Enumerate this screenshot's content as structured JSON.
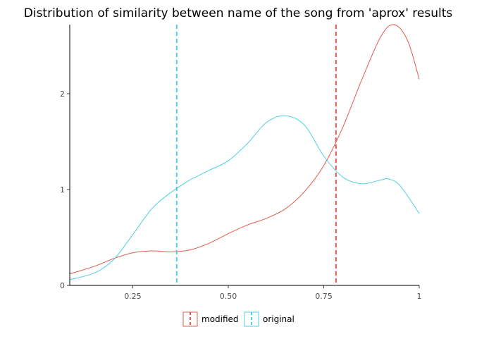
{
  "chart_data": {
    "type": "density",
    "title": "Distribution of similarity between name of the song from 'aprox' results",
    "xlabel": "",
    "ylabel": "",
    "xlim": [
      0.085,
      1.0
    ],
    "ylim": [
      0,
      2.72
    ],
    "x_ticks": [
      {
        "value": 0.25,
        "label": "0.25"
      },
      {
        "value": 0.5,
        "label": "0.50"
      },
      {
        "value": 0.75,
        "label": "0.75"
      },
      {
        "value": 1.0,
        "label": "1"
      }
    ],
    "y_ticks": [
      {
        "value": 0,
        "label": "0"
      },
      {
        "value": 1,
        "label": "1"
      },
      {
        "value": 2,
        "label": "2"
      }
    ],
    "grid": false,
    "legend_position": "bottom",
    "series": [
      {
        "name": "modified",
        "color": "#e15a4b",
        "mean_line": 0.782,
        "x": [
          0.085,
          0.15,
          0.2,
          0.25,
          0.3,
          0.35,
          0.4,
          0.45,
          0.5,
          0.55,
          0.6,
          0.65,
          0.7,
          0.75,
          0.8,
          0.85,
          0.9,
          0.935,
          0.97,
          1.0
        ],
        "y": [
          0.12,
          0.2,
          0.28,
          0.34,
          0.36,
          0.35,
          0.37,
          0.44,
          0.54,
          0.63,
          0.7,
          0.8,
          0.98,
          1.25,
          1.65,
          2.15,
          2.6,
          2.72,
          2.55,
          2.15
        ]
      },
      {
        "name": "original",
        "color": "#4dd0e1",
        "mean_line": 0.365,
        "x": [
          0.085,
          0.15,
          0.2,
          0.25,
          0.3,
          0.35,
          0.4,
          0.45,
          0.5,
          0.55,
          0.6,
          0.65,
          0.7,
          0.75,
          0.8,
          0.85,
          0.9,
          0.92,
          0.95,
          1.0
        ],
        "y": [
          0.06,
          0.13,
          0.27,
          0.53,
          0.8,
          0.97,
          1.1,
          1.2,
          1.3,
          1.48,
          1.7,
          1.77,
          1.67,
          1.35,
          1.13,
          1.06,
          1.1,
          1.11,
          1.04,
          0.75
        ]
      }
    ]
  }
}
